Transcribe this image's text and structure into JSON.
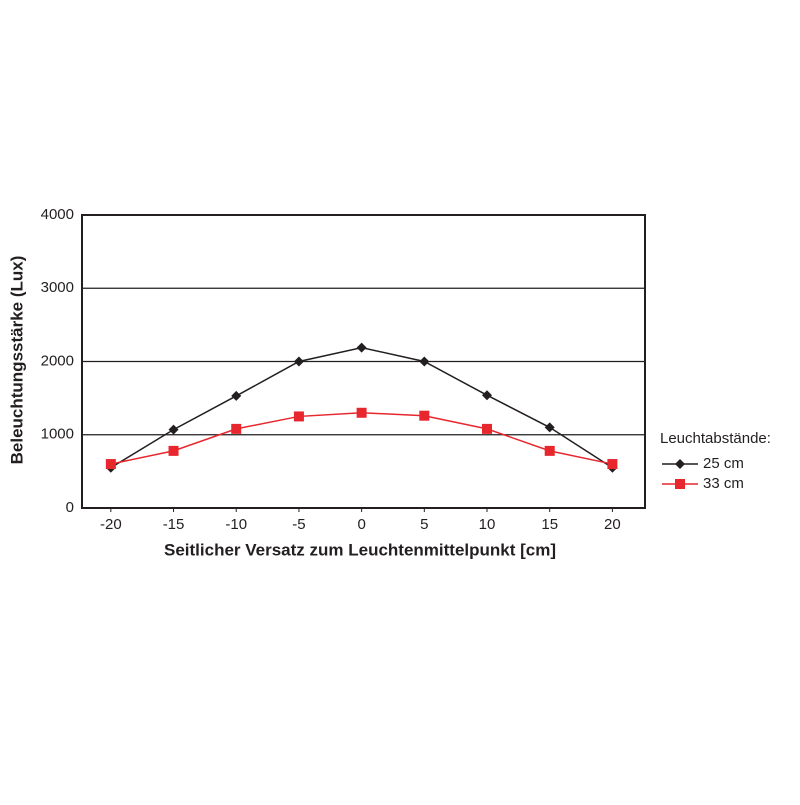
{
  "chart_data": {
    "type": "line",
    "y_label": "Beleuchtungsstärke (Lux)",
    "x_label": "Seitlicher Versatz zum Leuchtenmittelpunkt [cm]",
    "x": [
      -20,
      -15,
      -10,
      -5,
      0,
      5,
      10,
      15,
      20
    ],
    "series": [
      {
        "name": "25 cm",
        "color": "#231f20",
        "marker": "diamond",
        "values": [
          550,
          1070,
          1530,
          2000,
          2190,
          2000,
          1540,
          1100,
          550
        ]
      },
      {
        "name": "33 cm",
        "color": "#e8262e",
        "marker": "square",
        "values": [
          600,
          780,
          1080,
          1250,
          1300,
          1260,
          1080,
          780,
          600
        ]
      }
    ],
    "xlim": [
      -22.3,
      22.6
    ],
    "xticks": [
      -20,
      -15,
      -10,
      -5,
      0,
      5,
      10,
      15,
      20
    ],
    "ylim": [
      0,
      4000
    ],
    "yticks": [
      0,
      1000,
      2000,
      3000,
      4000
    ],
    "grid": true,
    "legend_title": "Leuchtabstände:",
    "legend_position": "right"
  }
}
